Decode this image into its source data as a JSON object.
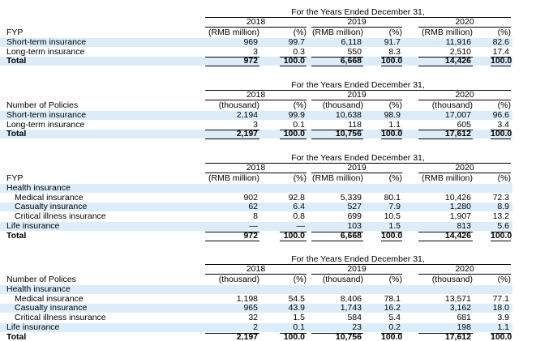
{
  "tables": [
    {
      "header": "For the Years Ended December 31,",
      "years": [
        "2018",
        "2019",
        "2020"
      ],
      "label": "FYP",
      "units": [
        "(RMB million)",
        "(%)",
        "(RMB million)",
        "(%)",
        "(RMB million)",
        "(%)"
      ],
      "rows": [
        {
          "label": "Short-term insurance",
          "cells": [
            "969",
            "99.7",
            "6,118",
            "91.7",
            "11,916",
            "82.6"
          ]
        },
        {
          "label": "Long-term insurance",
          "cells": [
            "3",
            "0.3",
            "550",
            "8.3",
            "2,510",
            "17.4"
          ]
        },
        {
          "label": "Total",
          "cells": [
            "972",
            "100.0",
            "6,668",
            "100.0",
            "14,426",
            "100.0"
          ]
        }
      ]
    },
    {
      "header": "For the Years Ended December 31,",
      "years": [
        "2018",
        "2019",
        "2020"
      ],
      "label": "Number of Policies",
      "units": [
        "(thousand)",
        "(%)",
        "(thousand)",
        "(%)",
        "(thousand)",
        "(%)"
      ],
      "rows": [
        {
          "label": "Short-term insurance",
          "cells": [
            "2,194",
            "99.9",
            "10,638",
            "98.9",
            "17,007",
            "96.6"
          ]
        },
        {
          "label": "Long-term insurance",
          "cells": [
            "3",
            "0.1",
            "118",
            "1.1",
            "605",
            "3.4"
          ]
        },
        {
          "label": "Total",
          "cells": [
            "2,197",
            "100.0",
            "10,756",
            "100.0",
            "17,612",
            "100.0"
          ]
        }
      ]
    },
    {
      "header": "For the Years Ended December 31,",
      "years": [
        "2018",
        "2019",
        "2020"
      ],
      "label": "FYP",
      "units": [
        "(RMB million)",
        "(%)",
        "(RMB million)",
        "(%)",
        "(RMB million)",
        "(%)"
      ],
      "rows": [
        {
          "label": "Health insurance"
        },
        {
          "label": "Medical insurance",
          "cells": [
            "902",
            "92.8",
            "5,339",
            "80.1",
            "10,426",
            "72.3"
          ]
        },
        {
          "label": "Casualty insurance",
          "cells": [
            "62",
            "6.4",
            "527",
            "7.9",
            "1,280",
            "8.9"
          ]
        },
        {
          "label": "Critical illness insurance",
          "cells": [
            "8",
            "0.8",
            "699",
            "10.5",
            "1,907",
            "13.2"
          ]
        },
        {
          "label": "Life insurance",
          "cells": [
            "—",
            "—",
            "103",
            "1.5",
            "813",
            "5.6"
          ]
        },
        {
          "label": "Total",
          "cells": [
            "972",
            "100.0",
            "6,668",
            "100.0",
            "14,426",
            "100.0"
          ]
        }
      ]
    },
    {
      "header": "For the Years Ended December 31,",
      "years": [
        "2018",
        "2019",
        "2020"
      ],
      "label": "Number of Polices",
      "units": [
        "(thousand)",
        "(%)",
        "(thousand)",
        "(%)",
        "(thousand)",
        "(%)"
      ],
      "rows": [
        {
          "label": "Health insurance"
        },
        {
          "label": "Medical insurance",
          "cells": [
            "1,198",
            "54.5",
            "8,406",
            "78.1",
            "13,571",
            "77.1"
          ]
        },
        {
          "label": "Casualty insurance",
          "cells": [
            "965",
            "43.9",
            "1,743",
            "16.2",
            "3,162",
            "18.0"
          ]
        },
        {
          "label": "Critical illness insurance",
          "cells": [
            "32",
            "1.5",
            "584",
            "5.4",
            "681",
            "3.9"
          ]
        },
        {
          "label": "Life insurance",
          "cells": [
            "2",
            "0.1",
            "23",
            "0.2",
            "198",
            "1.1"
          ]
        },
        {
          "label": "Total",
          "cells": [
            "2,197",
            "100.0",
            "10,756",
            "100.0",
            "17,612",
            "100.0"
          ]
        }
      ]
    }
  ]
}
